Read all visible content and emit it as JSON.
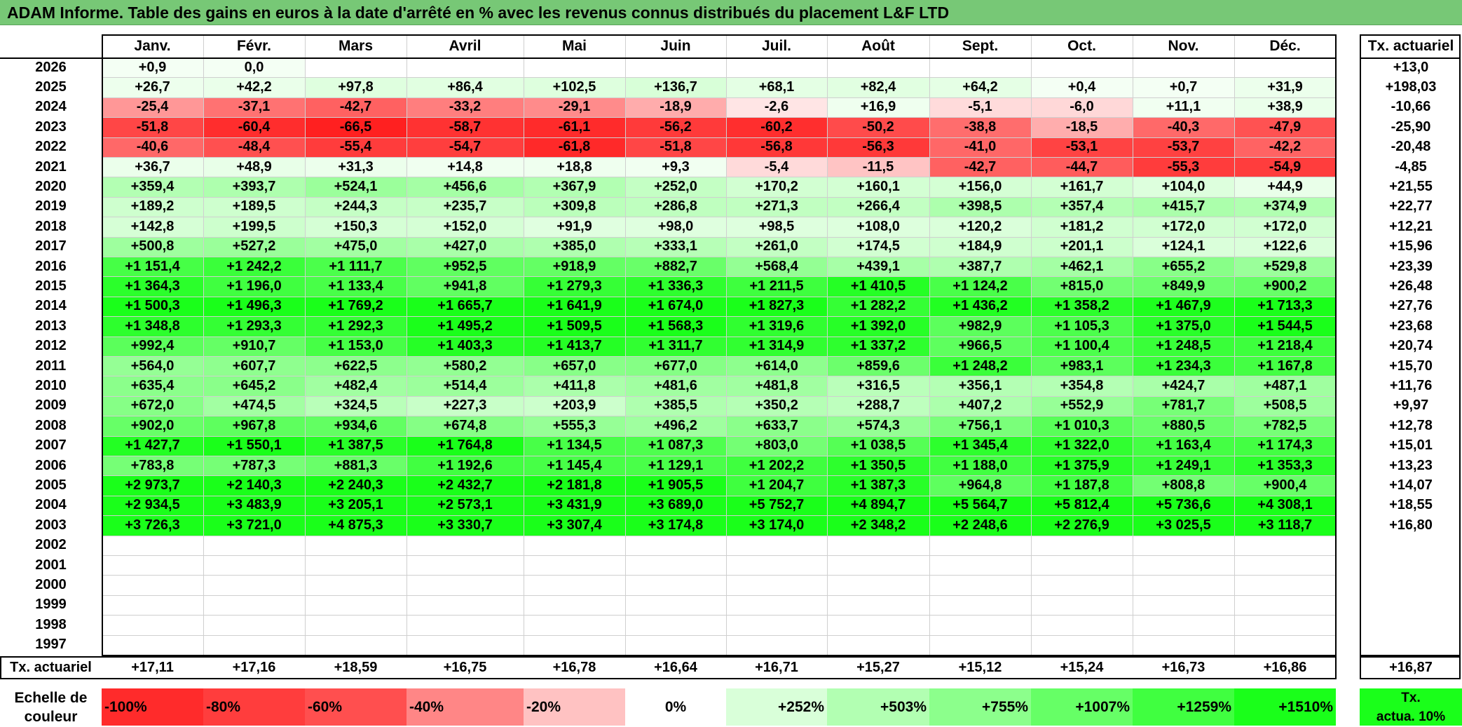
{
  "title": "ADAM Informe. Table des gains en euros à la date d'arrêté en % avec les revenus connus distribués du placement L&F LTD",
  "months": [
    "Janv.",
    "Févr.",
    "Mars",
    "Avril",
    "Mai",
    "Juin",
    "Juil.",
    "Août",
    "Sept.",
    "Oct.",
    "Nov.",
    "Déc."
  ],
  "actuarial_header": "Tx. actuariel",
  "rows": [
    {
      "year": "2026",
      "values": [
        "+0,9",
        "0,0",
        "",
        "",
        "",
        "",
        "",
        "",
        "",
        "",
        "",
        ""
      ],
      "actuarial": "+13,0"
    },
    {
      "year": "2025",
      "values": [
        "+26,7",
        "+42,2",
        "+97,8",
        "+86,4",
        "+102,5",
        "+136,7",
        "+68,1",
        "+82,4",
        "+64,2",
        "+0,4",
        "+0,7",
        "+31,9"
      ],
      "actuarial": "+198,03"
    },
    {
      "year": "2024",
      "values": [
        "-25,4",
        "-37,1",
        "-42,7",
        "-33,2",
        "-29,1",
        "-18,9",
        "-2,6",
        "+16,9",
        "-5,1",
        "-6,0",
        "+11,1",
        "+38,9"
      ],
      "actuarial": "-10,66"
    },
    {
      "year": "2023",
      "values": [
        "-51,8",
        "-60,4",
        "-66,5",
        "-58,7",
        "-61,1",
        "-56,2",
        "-60,2",
        "-50,2",
        "-38,8",
        "-18,5",
        "-40,3",
        "-47,9"
      ],
      "actuarial": "-25,90"
    },
    {
      "year": "2022",
      "values": [
        "-40,6",
        "-48,4",
        "-55,4",
        "-54,7",
        "-61,8",
        "-51,8",
        "-56,8",
        "-56,3",
        "-41,0",
        "-53,1",
        "-53,7",
        "-42,2"
      ],
      "actuarial": "-20,48"
    },
    {
      "year": "2021",
      "values": [
        "+36,7",
        "+48,9",
        "+31,3",
        "+14,8",
        "+18,8",
        "+9,3",
        "-5,4",
        "-11,5",
        "-42,7",
        "-44,7",
        "-55,3",
        "-54,9"
      ],
      "actuarial": "-4,85"
    },
    {
      "year": "2020",
      "values": [
        "+359,4",
        "+393,7",
        "+524,1",
        "+456,6",
        "+367,9",
        "+252,0",
        "+170,2",
        "+160,1",
        "+156,0",
        "+161,7",
        "+104,0",
        "+44,9"
      ],
      "actuarial": "+21,55"
    },
    {
      "year": "2019",
      "values": [
        "+189,2",
        "+189,5",
        "+244,3",
        "+235,7",
        "+309,8",
        "+286,8",
        "+271,3",
        "+266,4",
        "+398,5",
        "+357,4",
        "+415,7",
        "+374,9"
      ],
      "actuarial": "+22,77"
    },
    {
      "year": "2018",
      "values": [
        "+142,8",
        "+199,5",
        "+150,3",
        "+152,0",
        "+91,9",
        "+98,0",
        "+98,5",
        "+108,0",
        "+120,2",
        "+181,2",
        "+172,0",
        "+172,0"
      ],
      "actuarial": "+12,21"
    },
    {
      "year": "2017",
      "values": [
        "+500,8",
        "+527,2",
        "+475,0",
        "+427,0",
        "+385,0",
        "+333,1",
        "+261,0",
        "+174,5",
        "+184,9",
        "+201,1",
        "+124,1",
        "+122,6"
      ],
      "actuarial": "+15,96"
    },
    {
      "year": "2016",
      "values": [
        "+1 151,4",
        "+1 242,2",
        "+1 111,7",
        "+952,5",
        "+918,9",
        "+882,7",
        "+568,4",
        "+439,1",
        "+387,7",
        "+462,1",
        "+655,2",
        "+529,8"
      ],
      "actuarial": "+23,39"
    },
    {
      "year": "2015",
      "values": [
        "+1 364,3",
        "+1 196,0",
        "+1 133,4",
        "+941,8",
        "+1 279,3",
        "+1 336,3",
        "+1 211,5",
        "+1 410,5",
        "+1 124,2",
        "+815,0",
        "+849,9",
        "+900,2"
      ],
      "actuarial": "+26,48"
    },
    {
      "year": "2014",
      "values": [
        "+1 500,3",
        "+1 496,3",
        "+1 769,2",
        "+1 665,7",
        "+1 641,9",
        "+1 674,0",
        "+1 827,3",
        "+1 282,2",
        "+1 436,2",
        "+1 358,2",
        "+1 467,9",
        "+1 713,3"
      ],
      "actuarial": "+27,76"
    },
    {
      "year": "2013",
      "values": [
        "+1 348,8",
        "+1 293,3",
        "+1 292,3",
        "+1 495,2",
        "+1 509,5",
        "+1 568,3",
        "+1 319,6",
        "+1 392,0",
        "+982,9",
        "+1 105,3",
        "+1 375,0",
        "+1 544,5"
      ],
      "actuarial": "+23,68"
    },
    {
      "year": "2012",
      "values": [
        "+992,4",
        "+910,7",
        "+1 153,0",
        "+1 403,3",
        "+1 413,7",
        "+1 311,7",
        "+1 314,9",
        "+1 337,2",
        "+966,5",
        "+1 100,4",
        "+1 248,5",
        "+1 218,4"
      ],
      "actuarial": "+20,74"
    },
    {
      "year": "2011",
      "values": [
        "+564,0",
        "+607,7",
        "+622,5",
        "+580,2",
        "+657,0",
        "+677,0",
        "+614,0",
        "+859,6",
        "+1 248,2",
        "+983,1",
        "+1 234,3",
        "+1 167,8"
      ],
      "actuarial": "+15,70"
    },
    {
      "year": "2010",
      "values": [
        "+635,4",
        "+645,2",
        "+482,4",
        "+514,4",
        "+411,8",
        "+481,6",
        "+481,8",
        "+316,5",
        "+356,1",
        "+354,8",
        "+424,7",
        "+487,1"
      ],
      "actuarial": "+11,76"
    },
    {
      "year": "2009",
      "values": [
        "+672,0",
        "+474,5",
        "+324,5",
        "+227,3",
        "+203,9",
        "+385,5",
        "+350,2",
        "+288,7",
        "+407,2",
        "+552,9",
        "+781,7",
        "+508,5"
      ],
      "actuarial": "+9,97"
    },
    {
      "year": "2008",
      "values": [
        "+902,0",
        "+967,8",
        "+934,6",
        "+674,8",
        "+555,3",
        "+496,2",
        "+633,7",
        "+574,3",
        "+756,1",
        "+1 010,3",
        "+880,5",
        "+782,5"
      ],
      "actuarial": "+12,78"
    },
    {
      "year": "2007",
      "values": [
        "+1 427,7",
        "+1 550,1",
        "+1 387,5",
        "+1 764,8",
        "+1 134,5",
        "+1 087,3",
        "+803,0",
        "+1 038,5",
        "+1 345,4",
        "+1 322,0",
        "+1 163,4",
        "+1 174,3"
      ],
      "actuarial": "+15,01"
    },
    {
      "year": "2006",
      "values": [
        "+783,8",
        "+787,3",
        "+881,3",
        "+1 192,6",
        "+1 145,4",
        "+1 129,1",
        "+1 202,2",
        "+1 350,5",
        "+1 188,0",
        "+1 375,9",
        "+1 249,1",
        "+1 353,3"
      ],
      "actuarial": "+13,23"
    },
    {
      "year": "2005",
      "values": [
        "+2 973,7",
        "+2 140,3",
        "+2 240,3",
        "+2 432,7",
        "+2 181,8",
        "+1 905,5",
        "+1 204,7",
        "+1 387,3",
        "+964,8",
        "+1 187,8",
        "+808,8",
        "+900,4"
      ],
      "actuarial": "+14,07"
    },
    {
      "year": "2004",
      "values": [
        "+2 934,5",
        "+3 483,9",
        "+3 205,1",
        "+2 573,1",
        "+3 431,9",
        "+3 689,0",
        "+5 752,7",
        "+4 894,7",
        "+5 564,7",
        "+5 812,4",
        "+5 736,6",
        "+4 308,1"
      ],
      "actuarial": "+18,55"
    },
    {
      "year": "2003",
      "values": [
        "+3 726,3",
        "+3 721,0",
        "+4 875,3",
        "+3 330,7",
        "+3 307,4",
        "+3 174,8",
        "+3 174,0",
        "+2 348,2",
        "+2 248,6",
        "+2 276,9",
        "+3 025,5",
        "+3 118,7"
      ],
      "actuarial": "+16,80"
    },
    {
      "year": "2002",
      "values": [
        "",
        "",
        "",
        "",
        "",
        "",
        "",
        "",
        "",
        "",
        "",
        ""
      ],
      "actuarial": ""
    },
    {
      "year": "2001",
      "values": [
        "",
        "",
        "",
        "",
        "",
        "",
        "",
        "",
        "",
        "",
        "",
        ""
      ],
      "actuarial": ""
    },
    {
      "year": "2000",
      "values": [
        "",
        "",
        "",
        "",
        "",
        "",
        "",
        "",
        "",
        "",
        "",
        ""
      ],
      "actuarial": ""
    },
    {
      "year": "1999",
      "values": [
        "",
        "",
        "",
        "",
        "",
        "",
        "",
        "",
        "",
        "",
        "",
        ""
      ],
      "actuarial": ""
    },
    {
      "year": "1998",
      "values": [
        "",
        "",
        "",
        "",
        "",
        "",
        "",
        "",
        "",
        "",
        "",
        ""
      ],
      "actuarial": ""
    },
    {
      "year": "1997",
      "values": [
        "",
        "",
        "",
        "",
        "",
        "",
        "",
        "",
        "",
        "",
        "",
        ""
      ],
      "actuarial": ""
    }
  ],
  "totals": {
    "label": "Tx. actuariel",
    "values": [
      "+17,11",
      "+17,16",
      "+18,59",
      "+16,75",
      "+16,78",
      "+16,64",
      "+16,71",
      "+15,27",
      "+15,12",
      "+15,24",
      "+16,73",
      "+16,86"
    ],
    "actuarial": "+16,87"
  },
  "legend": {
    "label_line1": "Echelle de",
    "label_line2": "couleur",
    "items": [
      {
        "label": "-100%",
        "color": "#ff2b2b"
      },
      {
        "label": "-80%",
        "color": "#ff3d3d"
      },
      {
        "label": "-60%",
        "color": "#ff4f4f"
      },
      {
        "label": "-40%",
        "color": "#ff8686"
      },
      {
        "label": "-20%",
        "color": "#ffc2c2"
      },
      {
        "label": "0%",
        "color": "#ffffff"
      },
      {
        "label": "+252%",
        "color": "#d9ffd9"
      },
      {
        "label": "+503%",
        "color": "#b2ffb2"
      },
      {
        "label": "+755%",
        "color": "#8cff8c"
      },
      {
        "label": "+1007%",
        "color": "#66ff66"
      },
      {
        "label": "+1259%",
        "color": "#40ff40"
      },
      {
        "label": "+1510%",
        "color": "#1aff1a"
      }
    ],
    "actuarial_line1": "Tx.",
    "actuarial_line2": "actua. 10%",
    "actuarial_color": "#1aff1a"
  }
}
